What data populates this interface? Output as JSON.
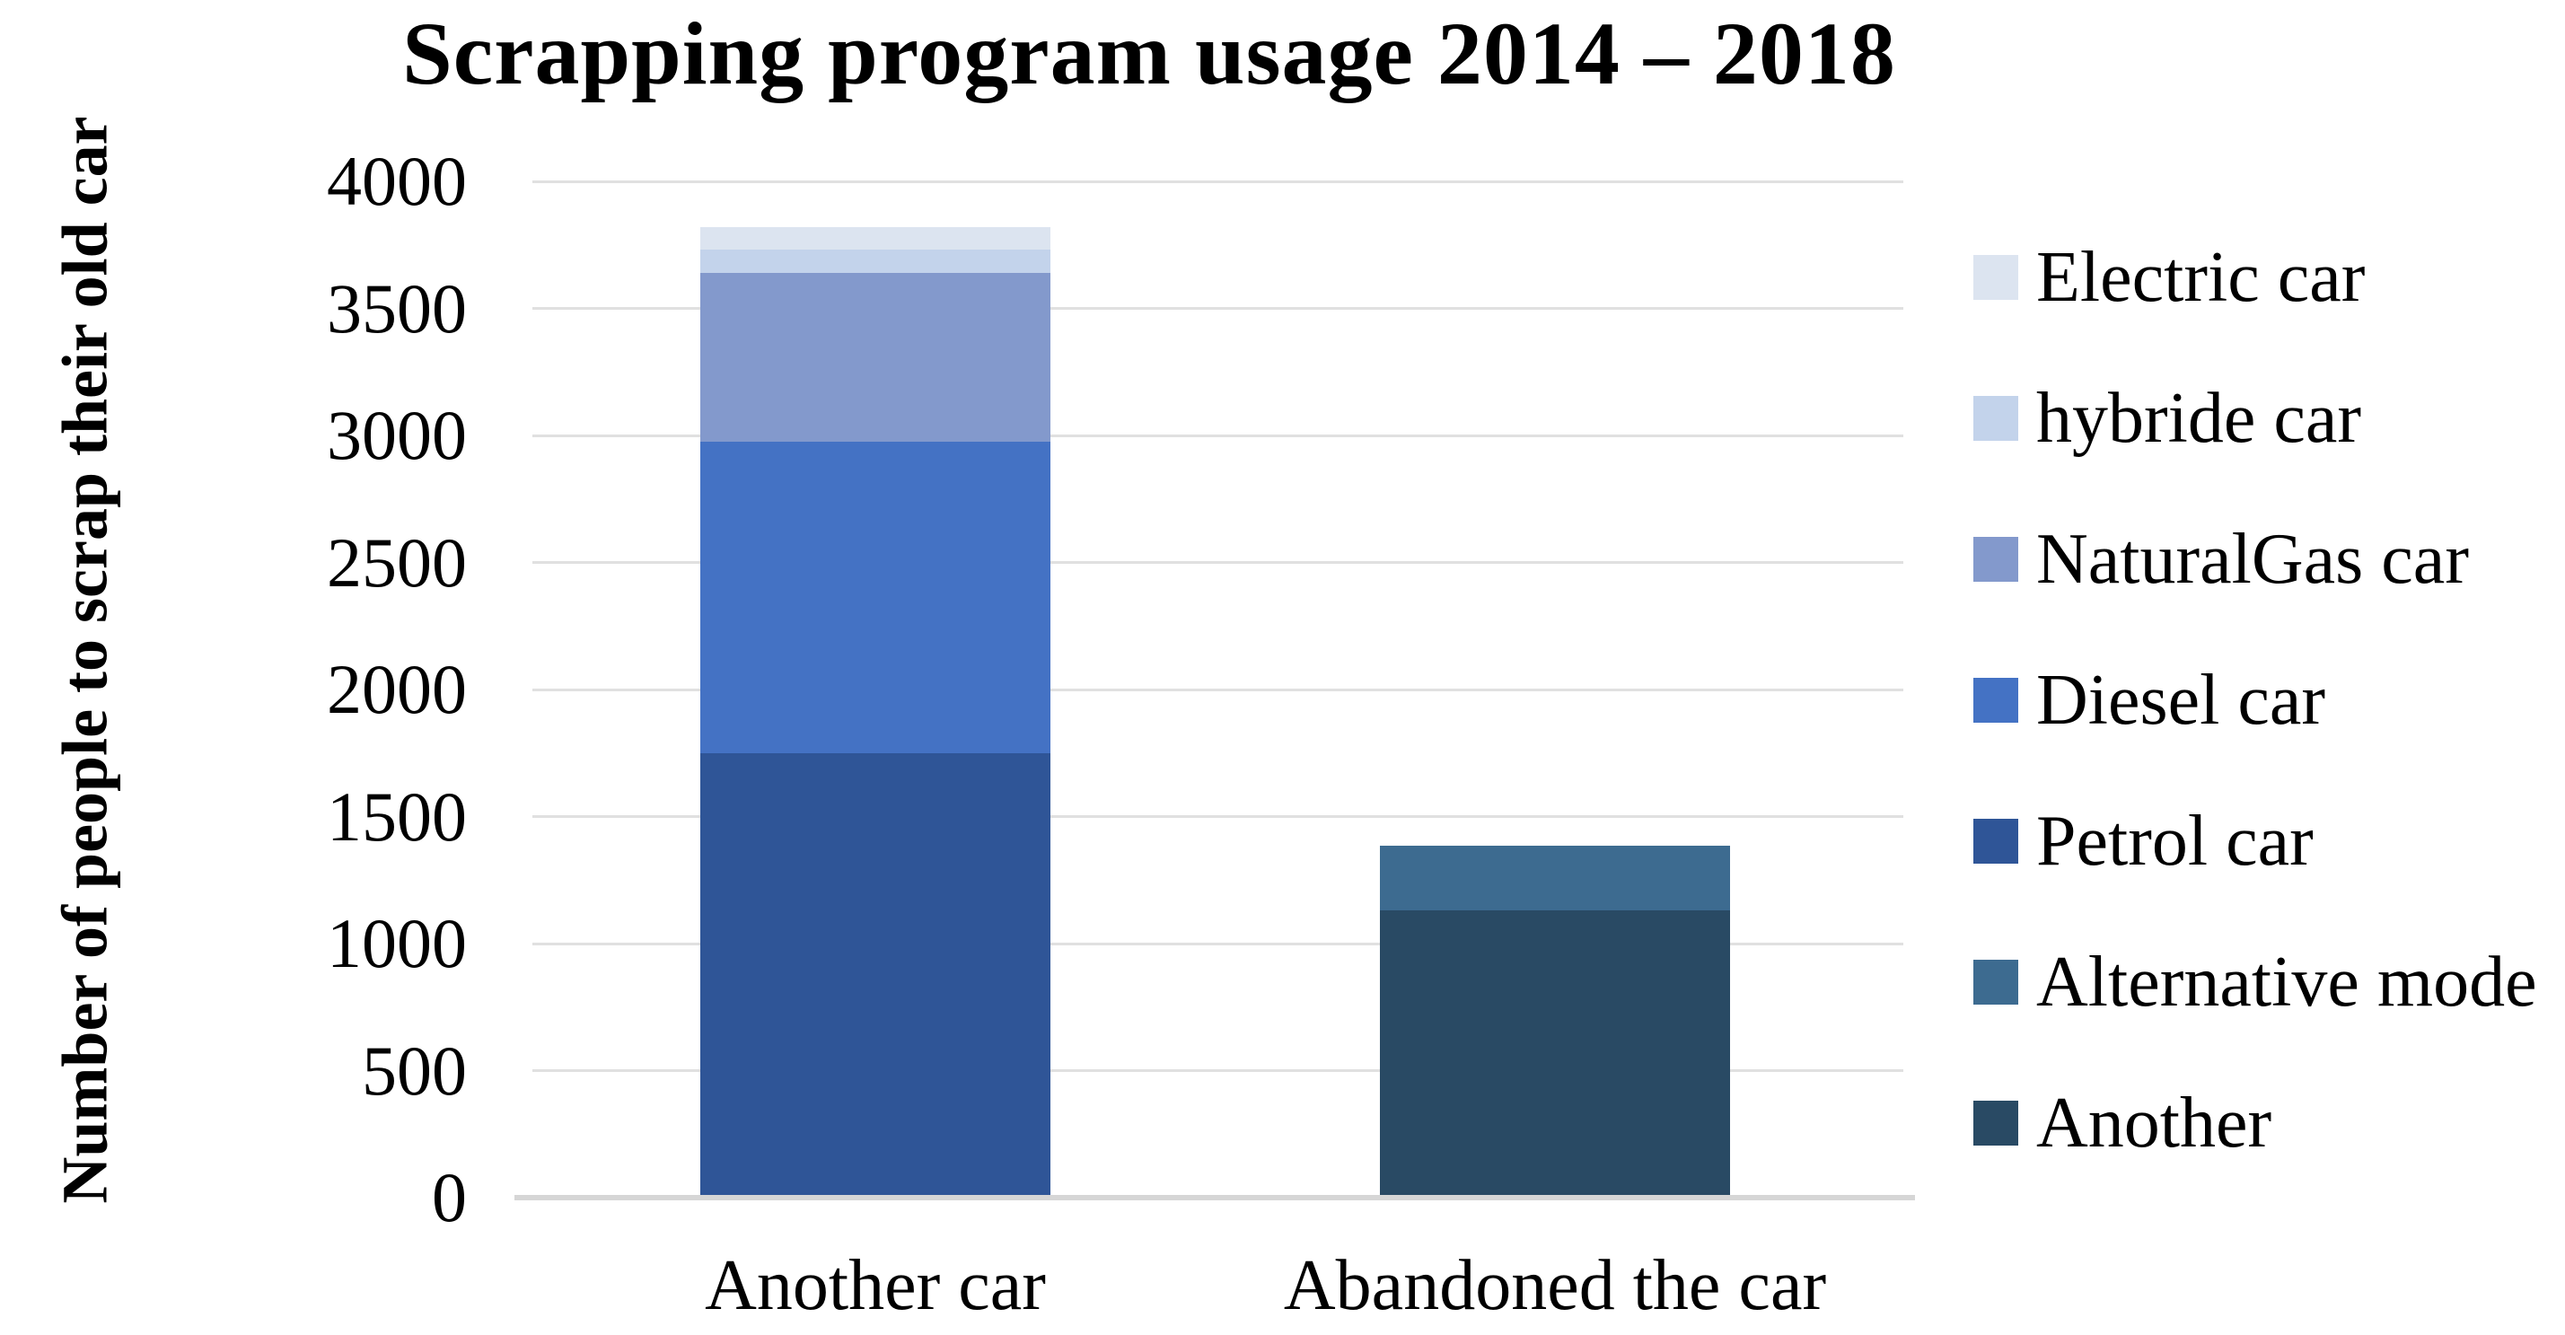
{
  "chart_data": {
    "type": "bar",
    "stacked": true,
    "title": "Scrapping program usage 2014 – 2018",
    "ylabel": "Number of people to scrap their old car",
    "xlabel": "",
    "categories": [
      "Another car",
      "Abandoned the car"
    ],
    "series": [
      {
        "name": "Electric car",
        "color": "#dce4f0",
        "values": [
          90,
          0
        ]
      },
      {
        "name": "hybride car",
        "color": "#c3d3eb",
        "values": [
          90,
          0
        ]
      },
      {
        "name": "NaturalGas car",
        "color": "#8399cc",
        "values": [
          665,
          0
        ]
      },
      {
        "name": "Diesel car",
        "color": "#4472c4",
        "values": [
          1225,
          0
        ]
      },
      {
        "name": "Petrol car",
        "color": "#2f5597",
        "values": [
          1750,
          0
        ]
      },
      {
        "name": "Alternative mode",
        "color": "#3d6b90",
        "values": [
          0,
          255
        ]
      },
      {
        "name": "Another",
        "color": "#294a64",
        "values": [
          0,
          1130
        ]
      }
    ],
    "totals": [
      3820,
      1385
    ],
    "ylim": [
      0,
      4000
    ],
    "yticks": [
      0,
      500,
      1000,
      1500,
      2000,
      2500,
      3000,
      3500,
      4000
    ],
    "grid": true,
    "legend_position": "right",
    "gridline_color": "#e0e0e0",
    "axis_line_color": "#d6d6d6"
  }
}
